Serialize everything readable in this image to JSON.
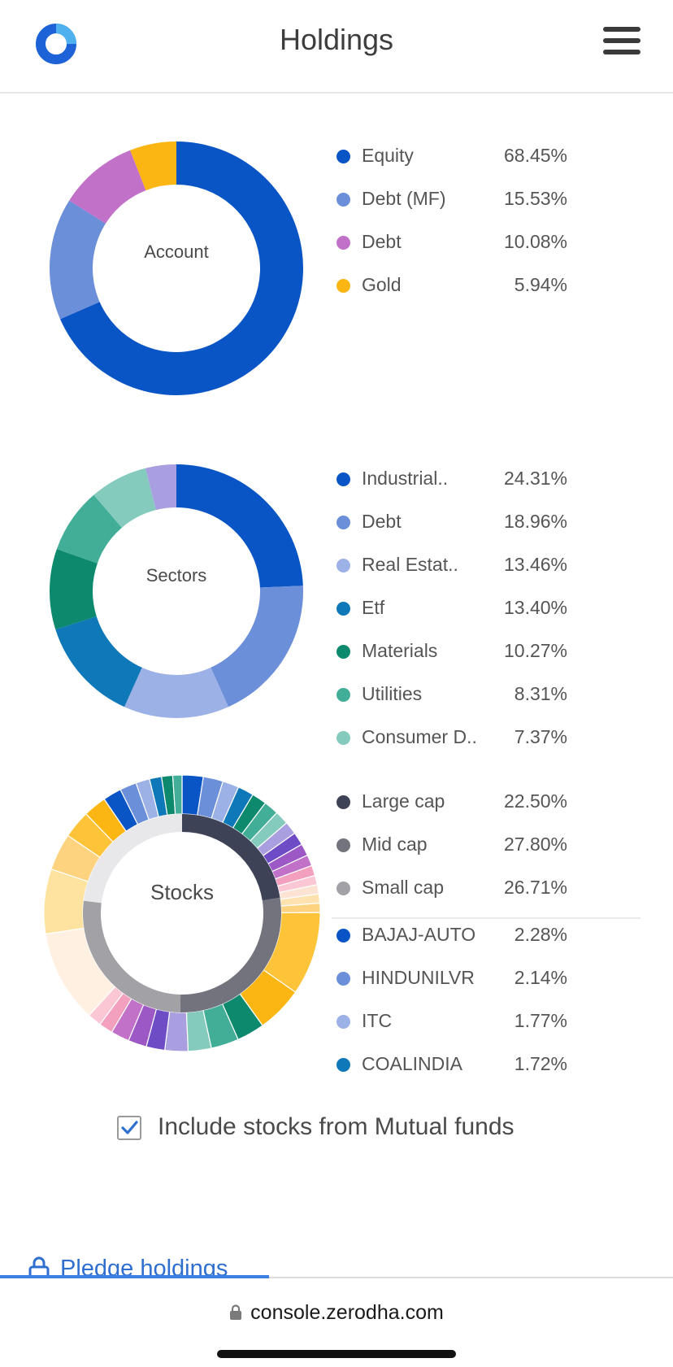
{
  "header": {
    "title": "Holdings",
    "logo_icon": "kite-logo-icon",
    "menu_icon": "hamburger-menu-icon"
  },
  "account": {
    "label": "Account",
    "segments": [
      {
        "name": "Equity",
        "value": "68.45%",
        "pct": 68.45,
        "color": "#0a55c6"
      },
      {
        "name": "Debt (MF)",
        "value": "15.53%",
        "pct": 15.53,
        "color": "#6b8fd9"
      },
      {
        "name": "Debt",
        "value": "10.08%",
        "pct": 10.08,
        "color": "#c171c8"
      },
      {
        "name": "Gold",
        "value": "5.94%",
        "pct": 5.94,
        "color": "#fbb614"
      }
    ]
  },
  "sectors": {
    "label": "Sectors",
    "segments": [
      {
        "name": "Industrial..",
        "value": "24.31%",
        "pct": 24.31,
        "color": "#0a55c6"
      },
      {
        "name": "Debt",
        "value": "18.96%",
        "pct": 18.96,
        "color": "#6b8fd9"
      },
      {
        "name": "Real Estat..",
        "value": "13.46%",
        "pct": 13.46,
        "color": "#9cb1e6"
      },
      {
        "name": "Etf",
        "value": "13.40%",
        "pct": 13.4,
        "color": "#0f78b8"
      },
      {
        "name": "Materials",
        "value": "10.27%",
        "pct": 10.27,
        "color": "#0d8a6e"
      },
      {
        "name": "Utilities",
        "value": "8.31%",
        "pct": 8.31,
        "color": "#43ae98"
      },
      {
        "name": "Consumer D..",
        "value": "7.37%",
        "pct": 7.37,
        "color": "#84cbbd"
      }
    ],
    "extra_segments": [
      {
        "pct": 3.92,
        "color": "#a99ee0"
      }
    ]
  },
  "stocks": {
    "label": "Stocks",
    "caps": [
      {
        "name": "Large cap",
        "value": "22.50%",
        "pct": 22.5,
        "color": "#3e4257"
      },
      {
        "name": "Mid cap",
        "value": "27.80%",
        "pct": 27.8,
        "color": "#73737d"
      },
      {
        "name": "Small cap",
        "value": "26.71%",
        "pct": 26.71,
        "color": "#a1a1a6"
      }
    ],
    "caps_remaining": {
      "pct": 22.99,
      "color": "#e8e8eb"
    },
    "list": [
      {
        "name": "BAJAJ-AUTO",
        "value": "2.28%",
        "color": "#0a55c6"
      },
      {
        "name": "HINDUNILVR",
        "value": "2.14%",
        "color": "#6b8fd9"
      },
      {
        "name": "ITC",
        "value": "1.77%",
        "color": "#9cb1e6"
      },
      {
        "name": "COALINDIA",
        "value": "1.72%",
        "color": "#0f78b8"
      }
    ],
    "outer_segments": [
      {
        "pct": 2.28,
        "color": "#0a55c6"
      },
      {
        "pct": 2.14,
        "color": "#6b8fd9"
      },
      {
        "pct": 1.77,
        "color": "#9cb1e6"
      },
      {
        "pct": 1.72,
        "color": "#0f78b8"
      },
      {
        "pct": 1.6,
        "color": "#0d8a6e"
      },
      {
        "pct": 1.6,
        "color": "#43ae98"
      },
      {
        "pct": 1.5,
        "color": "#84cbbd"
      },
      {
        "pct": 1.4,
        "color": "#a99ee0"
      },
      {
        "pct": 1.4,
        "color": "#6e4cc6"
      },
      {
        "pct": 1.3,
        "color": "#9c58c4"
      },
      {
        "pct": 1.2,
        "color": "#c171c8"
      },
      {
        "pct": 1.1,
        "color": "#f39fbe"
      },
      {
        "pct": 1.0,
        "color": "#fbc7d4"
      },
      {
        "pct": 1.0,
        "color": "#fde3d4"
      },
      {
        "pct": 1.0,
        "color": "#fee3b1"
      },
      {
        "pct": 1.0,
        "color": "#fdd37f"
      },
      {
        "pct": 9.0,
        "color": "#fdc43a"
      },
      {
        "pct": 5.0,
        "color": "#fbb614"
      },
      {
        "pct": 3.0,
        "color": "#0d8a6e"
      },
      {
        "pct": 3.0,
        "color": "#43ae98"
      },
      {
        "pct": 2.5,
        "color": "#84cbbd"
      },
      {
        "pct": 2.5,
        "color": "#a99ee0"
      },
      {
        "pct": 2.0,
        "color": "#6e4cc6"
      },
      {
        "pct": 2.0,
        "color": "#9c58c4"
      },
      {
        "pct": 2.0,
        "color": "#c171c8"
      },
      {
        "pct": 1.5,
        "color": "#f39fbe"
      },
      {
        "pct": 1.5,
        "color": "#fbc7d4"
      },
      {
        "pct": 10.0,
        "color": "#fff0e2"
      },
      {
        "pct": 7.0,
        "color": "#fee3a0"
      },
      {
        "pct": 4.0,
        "color": "#fdd37f"
      },
      {
        "pct": 3.0,
        "color": "#fdc43a"
      },
      {
        "pct": 2.5,
        "color": "#fbb614"
      },
      {
        "pct": 2.0,
        "color": "#0a55c6"
      },
      {
        "pct": 1.8,
        "color": "#6b8fd9"
      },
      {
        "pct": 1.5,
        "color": "#9cb1e6"
      },
      {
        "pct": 1.3,
        "color": "#0f78b8"
      },
      {
        "pct": 1.2,
        "color": "#0d8a6e"
      },
      {
        "pct": 1.0,
        "color": "#43ae98"
      }
    ]
  },
  "options": {
    "include_mf_label": "Include stocks from Mutual funds",
    "include_mf_checked": true
  },
  "footer": {
    "pledge_label": "Pledge holdings",
    "page_progress": 0.4,
    "url": "console.zerodha.com"
  },
  "colors": {
    "accent": "#2e6fd0",
    "brand": "#0a55c6",
    "check": "#2e6fd0"
  }
}
